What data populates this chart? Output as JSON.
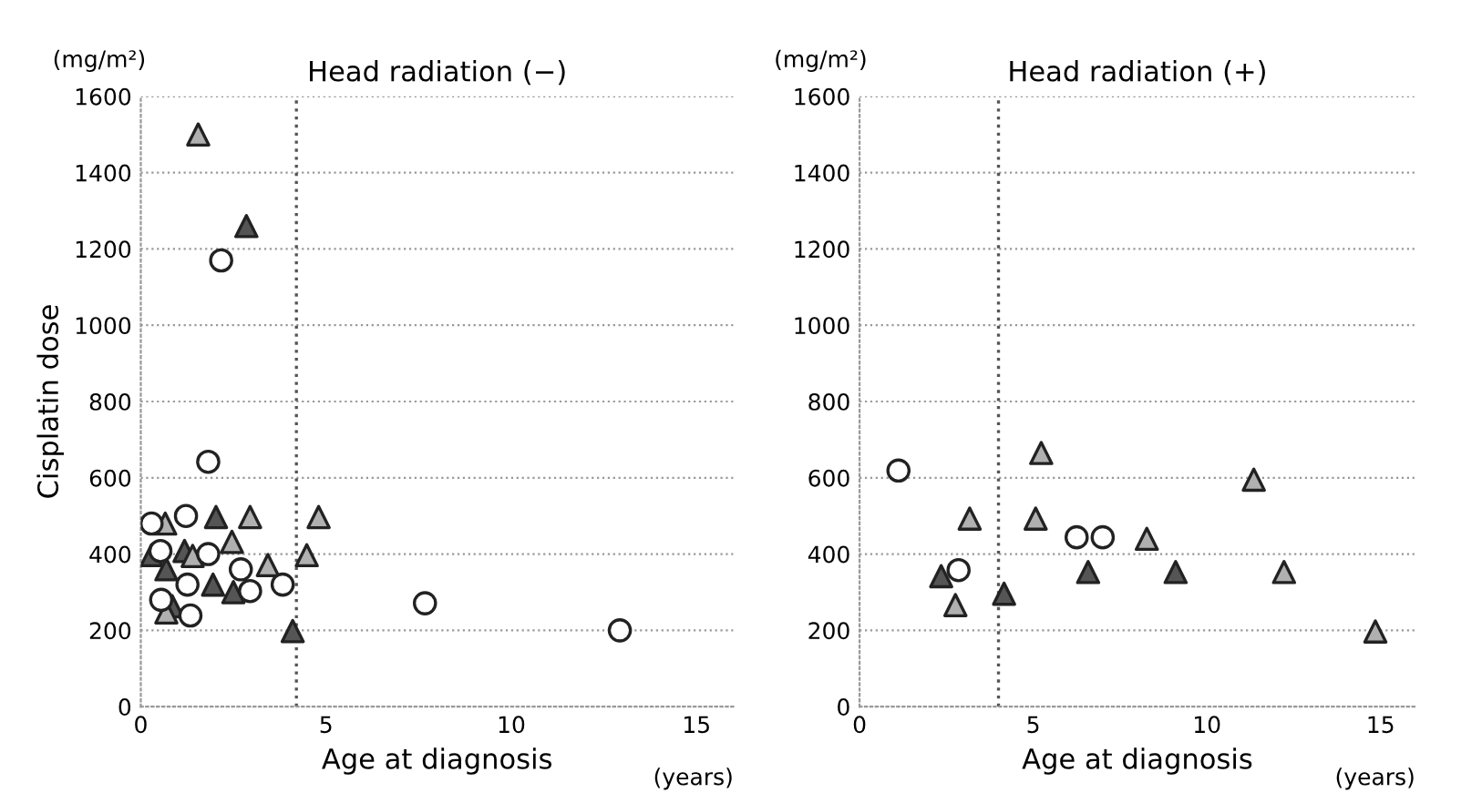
{
  "chart_data": [
    {
      "type": "scatter",
      "title": "Head radiation (−)",
      "xlabel": "Age at diagnosis",
      "ylabel": "Cisplatin dose",
      "annotations": [
        "(mg/m²)",
        "(years)"
      ],
      "xlim": [
        0,
        16
      ],
      "ylim": [
        0,
        1600
      ],
      "xticks": [
        0,
        5,
        10,
        15
      ],
      "yticks": [
        0,
        200,
        400,
        600,
        800,
        1000,
        1200,
        1400,
        1600
      ],
      "grid": "y",
      "legend": false,
      "ref_lines": [
        {
          "axis": "x",
          "value": 4.2,
          "color": "#555555",
          "line_style": "dotted"
        }
      ],
      "series": [
        {
          "marker": "circle",
          "color": "#ffffff",
          "x": [
            0.29,
            1.82,
            1.22,
            0.53,
            1.82,
            2.7,
            2.95,
            3.83,
            1.26,
            0.55,
            1.34,
            7.67,
            12.93,
            2.17
          ],
          "values": [
            480,
            642,
            500,
            408,
            400,
            360,
            303,
            320,
            320,
            280,
            239,
            271,
            200,
            1170
          ]
        },
        {
          "marker": "triangle",
          "color": "#b0b0b0",
          "x": [
            0.66,
            2.95,
            4.8,
            2.46,
            3.43,
            4.48,
            0.69,
            1.4,
            1.55
          ],
          "values": [
            480,
            497,
            497,
            432,
            371,
            397,
            247,
            395,
            1500
          ]
        },
        {
          "marker": "triangle",
          "color": "#555555",
          "x": [
            0.29,
            2.03,
            1.95,
            2.5,
            4.1,
            0.69,
            0.85,
            1.18,
            2.85
          ],
          "values": [
            397,
            497,
            320,
            300,
            198,
            360,
            263,
            408,
            1260
          ]
        }
      ]
    },
    {
      "type": "scatter",
      "title": "Head radiation (+)",
      "xlabel": "Age at diagnosis",
      "annotations": [
        "(mg/m²)",
        "(years)"
      ],
      "xlim": [
        0,
        16
      ],
      "ylim": [
        0,
        1600
      ],
      "xticks": [
        0,
        5,
        10,
        15
      ],
      "yticks": [
        0,
        200,
        400,
        600,
        800,
        1000,
        1200,
        1400,
        1600
      ],
      "grid": "y",
      "legend": false,
      "ref_lines": [
        {
          "axis": "x",
          "value": 4.0,
          "color": "#555555",
          "line_style": "dotted"
        }
      ],
      "series": [
        {
          "marker": "circle",
          "color": "#ffffff",
          "x": [
            1.12,
            2.85,
            6.25,
            7.0
          ],
          "values": [
            619,
            358,
            444,
            444
          ]
        },
        {
          "marker": "triangle",
          "color": "#b0b0b0",
          "x": [
            3.17,
            2.76,
            5.23,
            5.07,
            8.27,
            11.35,
            12.22,
            14.85
          ],
          "values": [
            493,
            266,
            665,
            493,
            440,
            595,
            353,
            197
          ]
        },
        {
          "marker": "triangle",
          "color": "#555555",
          "x": [
            2.35,
            4.16,
            6.58,
            9.1
          ],
          "values": [
            342,
            296,
            353,
            353
          ]
        }
      ]
    }
  ]
}
